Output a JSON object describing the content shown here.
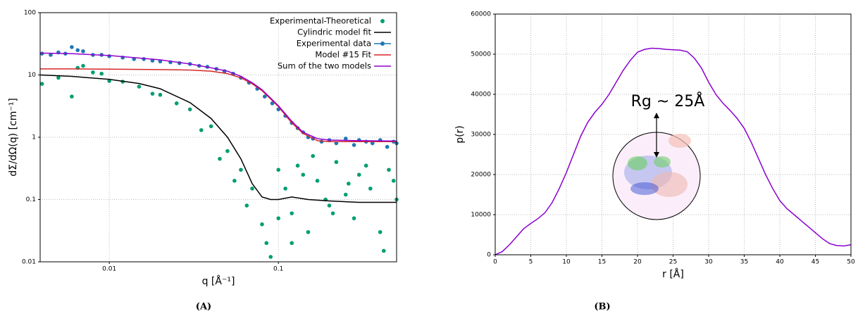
{
  "chart_data": [
    {
      "type": "line",
      "caption": "(A)",
      "xlabel": "q [Å⁻¹]",
      "ylabel": "dΣ/dΩ(q) [cm⁻¹]",
      "log_x": true,
      "log_y": true,
      "grid": true,
      "legend": "upper right",
      "xlim": [
        0.0039,
        0.5
      ],
      "ylim": [
        0.01,
        100
      ],
      "xticks": [
        0.01,
        0.1
      ],
      "yticks": [
        0.01,
        0.1,
        1,
        10,
        100
      ],
      "series": [
        {
          "name": "Experimental-Theoretical",
          "mode": "markers",
          "color": "#009e73",
          "x": [
            0.004,
            0.005,
            0.006,
            0.0065,
            0.007,
            0.008,
            0.009,
            0.01,
            0.012,
            0.015,
            0.018,
            0.02,
            0.025,
            0.03,
            0.035,
            0.04,
            0.045,
            0.05,
            0.055,
            0.06,
            0.065,
            0.07,
            0.08,
            0.085,
            0.09,
            0.1,
            0.11,
            0.12,
            0.13,
            0.15,
            0.17,
            0.2,
            0.22,
            0.25,
            0.28,
            0.3,
            0.35,
            0.4,
            0.45,
            0.5,
            0.12,
            0.16,
            0.21,
            0.26,
            0.33,
            0.42,
            0.48,
            0.1,
            0.14,
            0.19
          ],
          "values": [
            7.2,
            9,
            4.5,
            13,
            14,
            11,
            10.5,
            8,
            7.8,
            6.5,
            5,
            4.8,
            3.5,
            2.8,
            1.3,
            1.5,
            0.45,
            0.6,
            0.2,
            0.3,
            0.08,
            0.15,
            0.04,
            0.02,
            0.012,
            0.3,
            0.15,
            0.06,
            0.35,
            0.03,
            0.2,
            0.08,
            0.4,
            0.12,
            0.05,
            0.25,
            0.15,
            0.03,
            0.3,
            0.1,
            0.02,
            0.5,
            0.06,
            0.18,
            0.35,
            0.015,
            0.2,
            0.05,
            0.25,
            0.1
          ]
        },
        {
          "name": "Cylindric model fit",
          "mode": "lines",
          "color": "#000000",
          "x": [
            0.0039,
            0.006,
            0.01,
            0.015,
            0.02,
            0.03,
            0.04,
            0.05,
            0.06,
            0.07,
            0.08,
            0.09,
            0.1,
            0.12,
            0.15,
            0.2,
            0.3,
            0.5
          ],
          "values": [
            10,
            9.5,
            8.5,
            7.3,
            6,
            3.6,
            2,
            1,
            0.45,
            0.18,
            0.11,
            0.1,
            0.1,
            0.11,
            0.1,
            0.095,
            0.09,
            0.09
          ]
        },
        {
          "name": "Experimental data",
          "mode": "markers",
          "color": "#1f77b4",
          "x": [
            0.004,
            0.0045,
            0.005,
            0.0055,
            0.006,
            0.0065,
            0.007,
            0.008,
            0.009,
            0.01,
            0.012,
            0.014,
            0.016,
            0.018,
            0.02,
            0.023,
            0.026,
            0.03,
            0.034,
            0.038,
            0.043,
            0.048,
            0.054,
            0.06,
            0.067,
            0.075,
            0.083,
            0.092,
            0.1,
            0.11,
            0.12,
            0.13,
            0.14,
            0.15,
            0.16,
            0.18,
            0.2,
            0.22,
            0.25,
            0.28,
            0.3,
            0.33,
            0.36,
            0.4,
            0.44,
            0.48,
            0.5
          ],
          "values": [
            22,
            21,
            23,
            22,
            28,
            25,
            24,
            21,
            21,
            20,
            19,
            18,
            18,
            17,
            16.5,
            16,
            15.5,
            15,
            14,
            13.5,
            12.5,
            11.5,
            10.5,
            9,
            7.5,
            6,
            4.5,
            3.5,
            2.8,
            2.2,
            1.7,
            1.4,
            1.2,
            1.0,
            0.95,
            0.85,
            0.9,
            0.8,
            0.95,
            0.75,
            0.9,
            0.85,
            0.8,
            0.9,
            0.7,
            0.85,
            0.8
          ]
        },
        {
          "name": "Model #15 Fit",
          "mode": "lines",
          "color": "#d62728",
          "x": [
            0.0039,
            0.006,
            0.01,
            0.02,
            0.03,
            0.04,
            0.05,
            0.06,
            0.07,
            0.08,
            0.1,
            0.12,
            0.14,
            0.17,
            0.2,
            0.3,
            0.5
          ],
          "values": [
            12.5,
            12.5,
            12.4,
            12.2,
            12,
            11.5,
            10.5,
            9,
            7.2,
            5.6,
            3.1,
            1.7,
            1.15,
            0.88,
            0.85,
            0.85,
            0.85
          ]
        },
        {
          "name": "Sum of the two models",
          "mode": "lines",
          "color": "#9400d3",
          "x": [
            0.0039,
            0.006,
            0.01,
            0.02,
            0.03,
            0.04,
            0.05,
            0.06,
            0.07,
            0.08,
            0.1,
            0.12,
            0.14,
            0.17,
            0.2,
            0.3,
            0.5
          ],
          "values": [
            22.5,
            22,
            20.5,
            17.5,
            15,
            13,
            11.5,
            9.5,
            7.5,
            5.8,
            3.2,
            1.8,
            1.2,
            0.95,
            0.9,
            0.88,
            0.87
          ]
        }
      ]
    },
    {
      "type": "line",
      "caption": "(B)",
      "xlabel": "r [Å]",
      "ylabel": "p(r)",
      "annotation": "Rg ~ 25Å",
      "grid": true,
      "xlim": [
        0,
        50
      ],
      "ylim": [
        0,
        60000
      ],
      "xticks": [
        0,
        5,
        10,
        15,
        20,
        25,
        30,
        35,
        40,
        45,
        50
      ],
      "yticks": [
        0,
        10000,
        20000,
        30000,
        40000,
        50000,
        60000
      ],
      "color": "#8b00d0",
      "x": [
        0,
        1,
        2,
        3,
        4,
        5,
        6,
        7,
        8,
        9,
        10,
        11,
        12,
        13,
        14,
        15,
        16,
        17,
        18,
        19,
        20,
        21,
        22,
        23,
        24,
        25,
        26,
        27,
        28,
        29,
        30,
        31,
        32,
        33,
        34,
        35,
        36,
        37,
        38,
        39,
        40,
        41,
        42,
        43,
        44,
        45,
        46,
        47,
        48,
        49,
        50
      ],
      "values": [
        0,
        800,
        2500,
        4500,
        6500,
        7800,
        9000,
        10500,
        13000,
        16500,
        20500,
        25000,
        29500,
        33000,
        35500,
        37500,
        40000,
        43000,
        46000,
        48500,
        50500,
        51200,
        51500,
        51400,
        51200,
        51100,
        51000,
        50600,
        49000,
        46500,
        43000,
        40000,
        37800,
        36000,
        34000,
        31500,
        28000,
        24000,
        20000,
        16500,
        13500,
        11500,
        10000,
        8500,
        7000,
        5500,
        4000,
        2800,
        2300,
        2200,
        2500
      ]
    }
  ]
}
